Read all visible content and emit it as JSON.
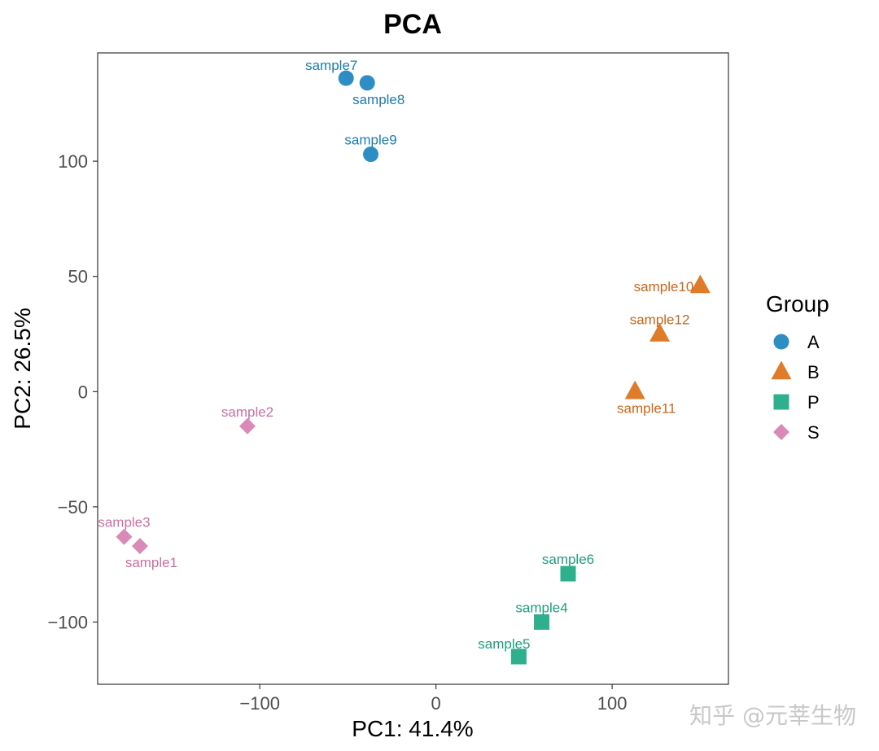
{
  "chart_data": {
    "type": "scatter",
    "title": "PCA",
    "xlabel": "PC1: 41.4%",
    "ylabel": "PC2: 26.5%",
    "xlim": [
      -192,
      166
    ],
    "ylim": [
      -127,
      147
    ],
    "x_ticks": [
      -100,
      0,
      100
    ],
    "y_ticks": [
      -100,
      -50,
      0,
      50,
      100
    ],
    "x_tick_labels": [
      "−100",
      "0",
      "100"
    ],
    "y_tick_labels": [
      "−100",
      "−50",
      "0",
      "50",
      "100"
    ],
    "grid": false,
    "legend": {
      "title": "Group",
      "position": "right"
    },
    "series": [
      {
        "name": "A",
        "shape": "circle",
        "color": "#2e8ec4",
        "label_color": "#1b7cad",
        "points": [
          {
            "label": "sample7",
            "x": -51,
            "y": 136,
            "label_pos": "above-left"
          },
          {
            "label": "sample8",
            "x": -39,
            "y": 134,
            "label_pos": "below"
          },
          {
            "label": "sample9",
            "x": -37,
            "y": 103,
            "label_pos": "above"
          }
        ]
      },
      {
        "name": "B",
        "shape": "triangle",
        "color": "#e07b2a",
        "label_color": "#c8661b",
        "points": [
          {
            "label": "sample10",
            "x": 150,
            "y": 46,
            "label_pos": "left"
          },
          {
            "label": "sample11",
            "x": 113,
            "y": 0,
            "label_pos": "below"
          },
          {
            "label": "sample12",
            "x": 127,
            "y": 25,
            "label_pos": "above"
          }
        ]
      },
      {
        "name": "P",
        "shape": "square",
        "color": "#2eb08e",
        "label_color": "#1e9d7c",
        "points": [
          {
            "label": "sample4",
            "x": 60,
            "y": -100,
            "label_pos": "above"
          },
          {
            "label": "sample5",
            "x": 47,
            "y": -115,
            "label_pos": "above-left"
          },
          {
            "label": "sample6",
            "x": 75,
            "y": -79,
            "label_pos": "above"
          }
        ]
      },
      {
        "name": "S",
        "shape": "diamond",
        "color": "#d98ab7",
        "label_color": "#c9709f",
        "points": [
          {
            "label": "sample1",
            "x": -168,
            "y": -67,
            "label_pos": "below"
          },
          {
            "label": "sample2",
            "x": -107,
            "y": -15,
            "label_pos": "above"
          },
          {
            "label": "sample3",
            "x": -177,
            "y": -63,
            "label_pos": "above"
          }
        ]
      }
    ]
  },
  "watermark": "知乎 @元莘生物"
}
